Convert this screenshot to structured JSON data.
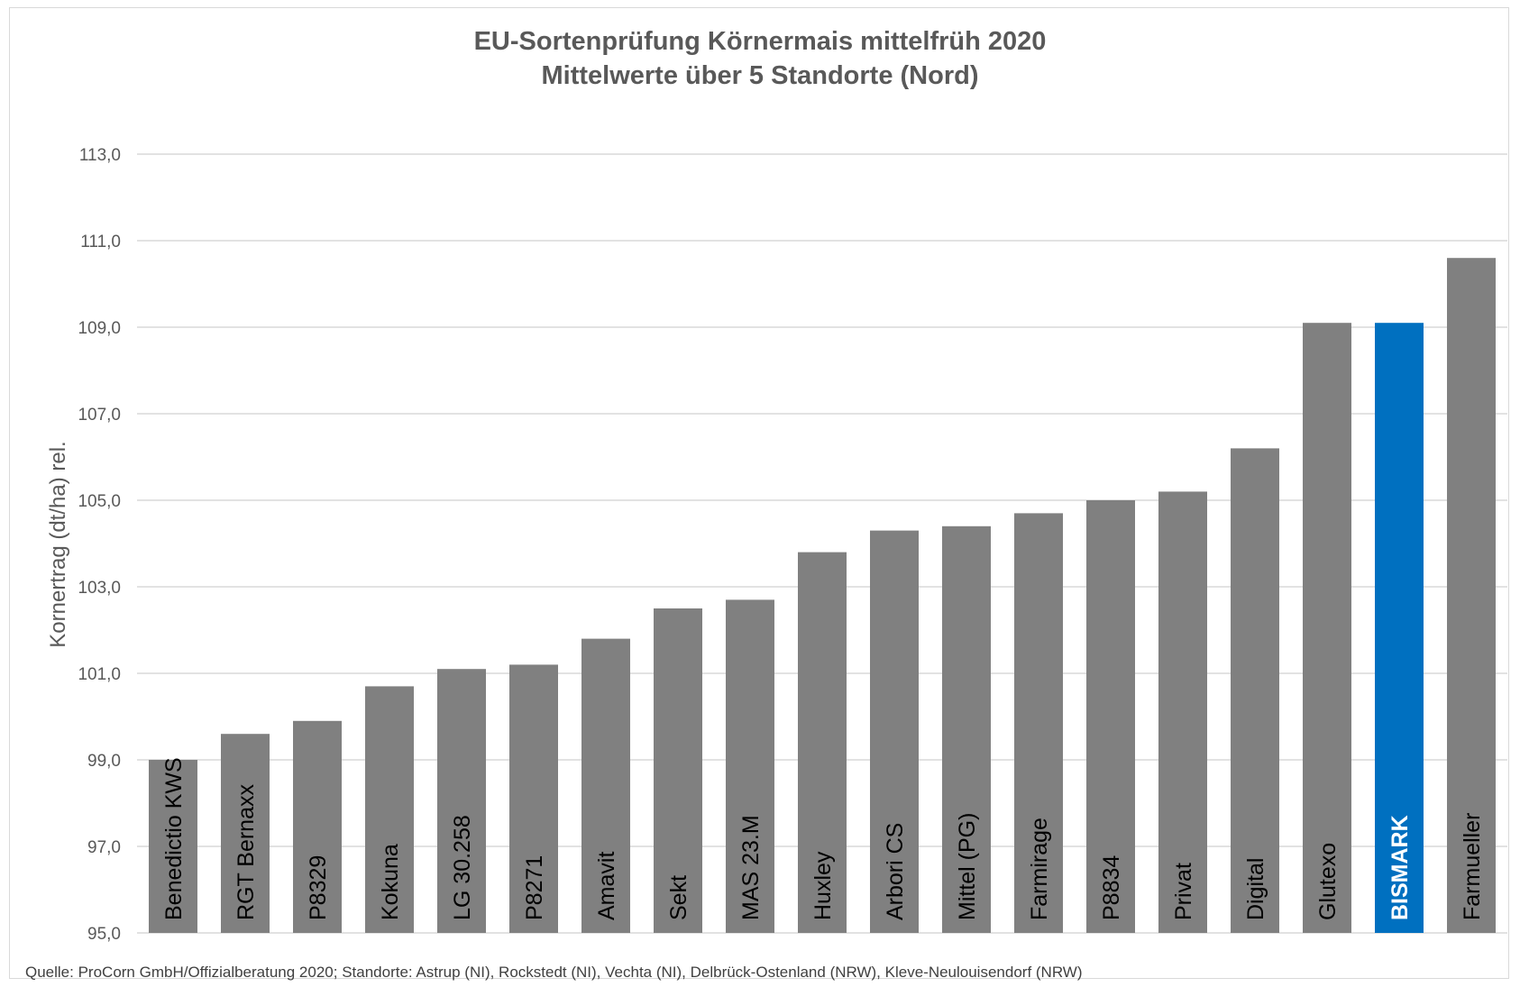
{
  "chart_data": {
    "type": "bar",
    "title": "EU-Sortenprüfung Körnermais mittelfrüh 2020",
    "subtitle": "Mittelwerte über 5 Standorte (Nord)",
    "xlabel": "",
    "ylabel": "Kornertrag (dt/ha) rel.",
    "ylim": [
      95,
      113
    ],
    "yticks": [
      "95,0",
      "97,0",
      "99,0",
      "101,0",
      "103,0",
      "105,0",
      "107,0",
      "109,0",
      "111,0",
      "113,0"
    ],
    "grid": true,
    "categories": [
      "Benedictio KWS",
      "RGT Bernaxx",
      "P8329",
      "Kokuna",
      "LG 30.258",
      "P8271",
      "Amavit",
      "Sekt",
      "MAS 23.M",
      "Huxley",
      "Arbori CS",
      "Mittel (PG)",
      "Farmirage",
      "P8834",
      "Privat",
      "Digital",
      "Glutexo",
      "BISMARK",
      "Farmueller"
    ],
    "values": [
      99.0,
      99.6,
      99.9,
      100.7,
      101.1,
      101.2,
      101.8,
      102.5,
      102.7,
      103.8,
      104.3,
      104.4,
      104.7,
      105.0,
      105.2,
      106.2,
      109.1,
      109.1,
      110.6
    ],
    "highlight": "BISMARK",
    "colors": {
      "bar": "#808080",
      "highlight": "#0070C0",
      "grid": "#d9d9d9",
      "text": "#595959"
    },
    "source_note": "Quelle: ProCorn GmbH/Offizialberatung 2020; Standorte: Astrup (NI), Rockstedt (NI), Vechta (NI), Delbrück-Ostenland (NRW), Kleve-Neulouisendorf (NRW)"
  }
}
